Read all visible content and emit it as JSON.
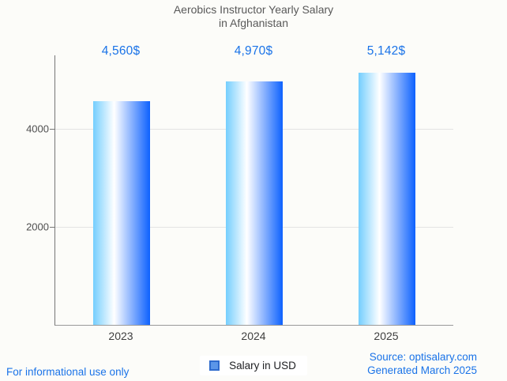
{
  "title": {
    "line1": "Aerobics Instructor Yearly Salary",
    "line2": "in Afghanistan"
  },
  "chart_data": {
    "type": "bar",
    "title": "Aerobics Instructor Yearly Salary in Afghanistan",
    "categories": [
      "2023",
      "2024",
      "2025"
    ],
    "values": [
      4560,
      4970,
      5142
    ],
    "value_labels": [
      "4,560$",
      "4,970$",
      "5,142$"
    ],
    "series": [
      {
        "name": "Salary in USD",
        "values": [
          4560,
          4970,
          5142
        ]
      }
    ],
    "xlabel": "",
    "ylabel": "",
    "ylim": [
      0,
      5500
    ],
    "yticks": [
      2000,
      4000
    ],
    "grid": true,
    "legend": {
      "label": "Salary in USD",
      "position": "bottom"
    }
  },
  "colors": {
    "accent_blue": "#1a73e8",
    "bar_gradient_left": "#74cefe",
    "bar_gradient_mid": "#ffffff",
    "bar_gradient_right": "#0d61fe",
    "legend_swatch_fill": "#5b96e8",
    "legend_swatch_border": "#2f6bcd",
    "title_text": "#595959",
    "gridline": "#e3e3e3",
    "axis_line": "#767676",
    "background": "#fcfcf9"
  },
  "footer": {
    "disclaimer": "For informational use only",
    "source": "Source: optisalary.com",
    "generated": "Generated March 2025"
  }
}
